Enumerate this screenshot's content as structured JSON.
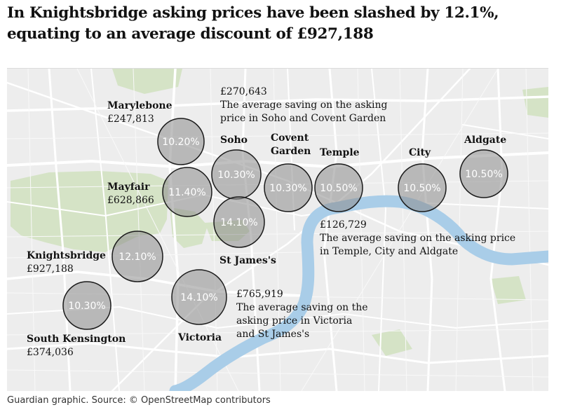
{
  "headline": "In Knightsbridge asking prices have been slashed by 12.1%, equating to an average discount of £927,188",
  "source": "Guardian graphic. Source: © OpenStreetMap contributors",
  "colors": {
    "land": "#ededed",
    "park": "#d5e3c6",
    "river": "#a9cde8",
    "road": "#ffffff",
    "circle_fill": "#8c8c8c",
    "circle_stroke": "#1a1a1a",
    "text": "#121212"
  },
  "areas": [
    {
      "id": "marylebone",
      "name": "Marylebone",
      "amount": "£247,813",
      "discount": "10.20%"
    },
    {
      "id": "soho",
      "name": "Soho",
      "amount": "",
      "discount": "10.30%"
    },
    {
      "id": "covent-garden",
      "name": "Covent Garden",
      "amount": "",
      "discount": "10.30%"
    },
    {
      "id": "temple",
      "name": "Temple",
      "amount": "",
      "discount": "10.50%"
    },
    {
      "id": "city",
      "name": "City",
      "amount": "",
      "discount": "10.50%"
    },
    {
      "id": "aldgate",
      "name": "Aldgate",
      "amount": "",
      "discount": "10.50%"
    },
    {
      "id": "mayfair",
      "name": "Mayfair",
      "amount": "£628,866",
      "discount": "11.40%"
    },
    {
      "id": "st-james",
      "name": "St James's",
      "amount": "",
      "discount": "14.10%"
    },
    {
      "id": "knightsbridge",
      "name": "Knightsbridge",
      "amount": "£927,188",
      "discount": "12.10%"
    },
    {
      "id": "victoria",
      "name": "Victoria",
      "amount": "",
      "discount": "14.10%"
    },
    {
      "id": "south-kensington",
      "name": "South Kensington",
      "amount": "£374,036",
      "discount": "10.30%"
    }
  ],
  "annotations": [
    {
      "id": "soho-covent",
      "amount": "£270,643",
      "text": "The average saving on the asking price in Soho and Covent Garden"
    },
    {
      "id": "temple-city",
      "amount": "£126,729",
      "text": "The average saving on the asking price in Temple, City and Aldgate"
    },
    {
      "id": "victoria-stj",
      "amount": "£765,919",
      "text": "The average saving on the asking price in Victoria and St James's"
    }
  ]
}
